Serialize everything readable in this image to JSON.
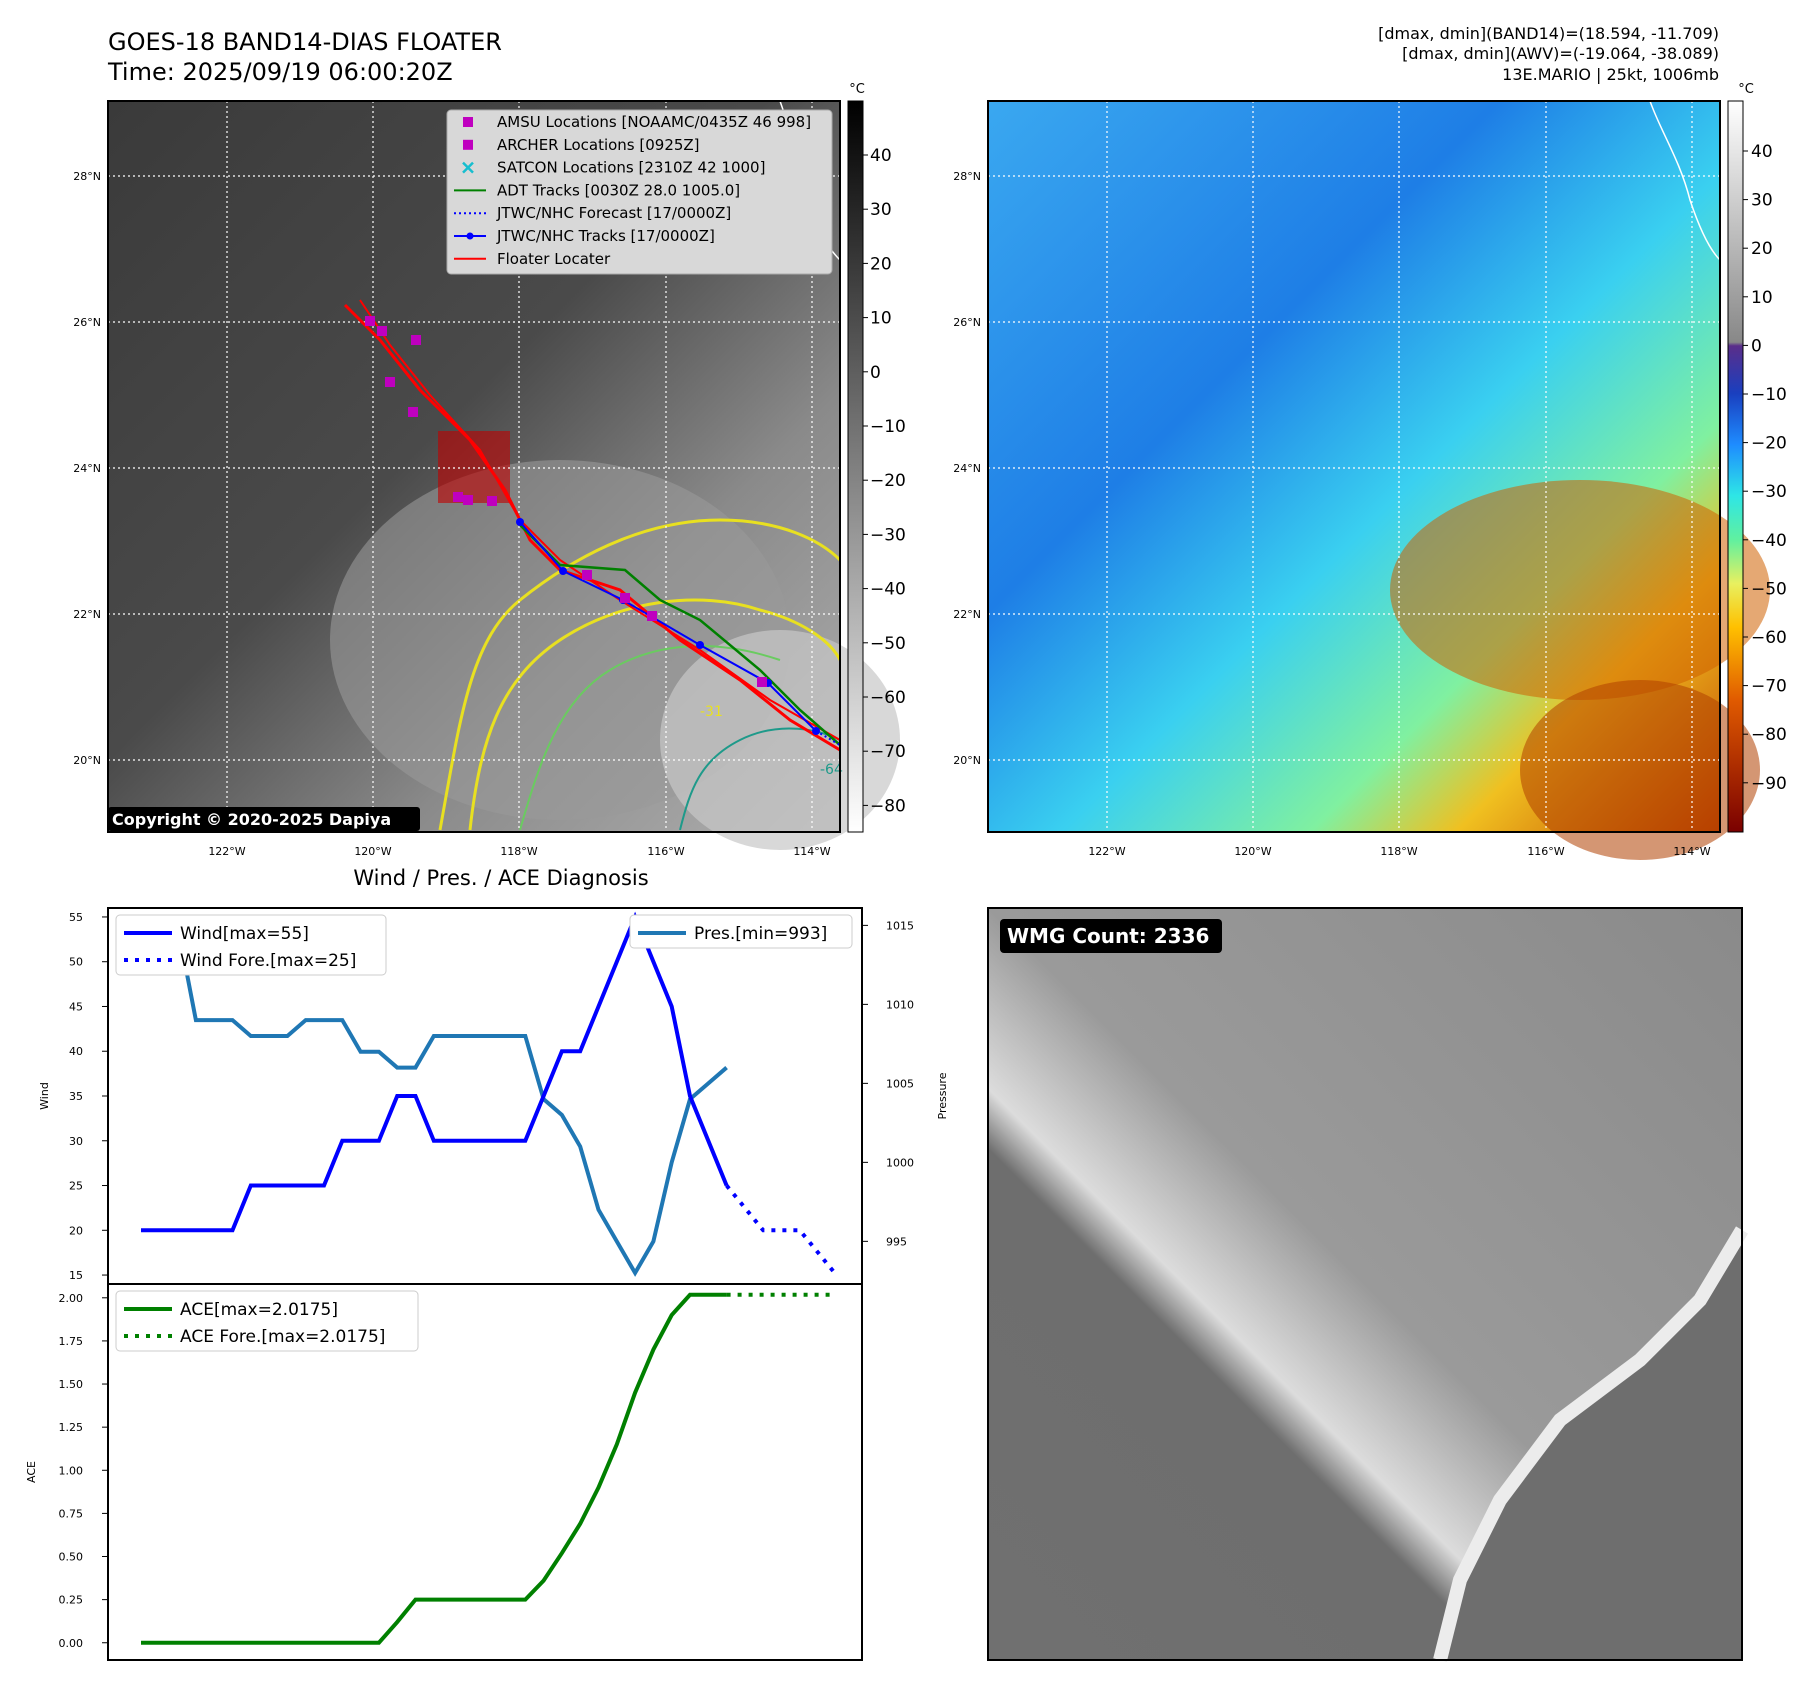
{
  "header": {
    "title_line1": "GOES-18 BAND14-DIAS FLOATER",
    "title_line2": "Time: 2025/09/19 06:00:20Z",
    "info_line1": "[dmax, dmin](BAND14)=(18.594, -11.709)",
    "info_line2": "[dmax, dmin](AWV)=(-19.064, -38.089)",
    "info_line3": "13E.MARIO | 25kt, 1006mb"
  },
  "map": {
    "lon_labels": [
      "122°W",
      "120°W",
      "118°W",
      "116°W",
      "114°W"
    ],
    "lat_labels": [
      "28°N",
      "26°N",
      "24°N",
      "22°N",
      "20°N"
    ],
    "copyright": "Copyright © 2020-2025 Dapiya",
    "contour_labels": [
      "-31",
      "-64"
    ],
    "legend": [
      {
        "label": "AMSU Locations [NOAAMC/0435Z 46 998]",
        "marker": "square",
        "color": "#bf00bf"
      },
      {
        "label": "ARCHER Locations [0925Z]",
        "marker": "square",
        "color": "#bf00bf"
      },
      {
        "label": "SATCON Locations [2310Z 42 1000]",
        "marker": "x",
        "color": "#17becf"
      },
      {
        "label": "ADT Tracks [0030Z 28.0 1005.0]",
        "marker": "line",
        "color": "#008000"
      },
      {
        "label": "JTWC/NHC Forecast [17/0000Z]",
        "marker": "dotted",
        "color": "#0000ff"
      },
      {
        "label": "JTWC/NHC Tracks [17/0000Z]",
        "marker": "line-dot",
        "color": "#0000ff"
      },
      {
        "label": "Floater Locater",
        "marker": "line",
        "color": "#ff0000"
      }
    ]
  },
  "colorbar_left": {
    "unit": "°C",
    "ticks": [
      "40",
      "30",
      "20",
      "10",
      "0",
      "−10",
      "−20",
      "−30",
      "−40",
      "−50",
      "−60",
      "−70",
      "−80"
    ]
  },
  "colorbar_right": {
    "unit": "°C",
    "ticks": [
      "40",
      "30",
      "20",
      "10",
      "0",
      "−10",
      "−20",
      "−30",
      "−40",
      "−50",
      "−60",
      "−70",
      "−80",
      "−90"
    ]
  },
  "diagnosis_title": "Wind / Pres. / ACE Diagnosis",
  "wmg_label": "WMG Count: 2336",
  "chart_data": [
    {
      "type": "line",
      "title": "Wind / Pres. / ACE Diagnosis",
      "ylabel": "Wind",
      "y2label": "Pressure",
      "ylim": [
        14,
        56
      ],
      "y2lim": [
        992.3,
        1016.1
      ],
      "yticks": [
        "55",
        "50",
        "45",
        "40",
        "35",
        "30",
        "25",
        "20",
        "15"
      ],
      "y2ticks": [
        "1015",
        "1010",
        "1005",
        "1000",
        "995"
      ],
      "series": [
        {
          "name": "Wind[max=55]",
          "color": "#0000ff",
          "style": "solid",
          "axis": "left",
          "values": [
            20,
            20,
            20,
            20,
            20,
            20,
            25,
            25,
            25,
            25,
            25,
            30,
            30,
            30,
            35,
            35,
            30,
            30,
            30,
            30,
            30,
            30,
            35,
            40,
            40,
            45,
            50,
            55,
            50,
            45,
            35,
            30,
            25
          ]
        },
        {
          "name": "Wind Fore.[max=25]",
          "color": "#0000ff",
          "style": "dotted",
          "axis": "left",
          "values": [
            25,
            22.5,
            20,
            20,
            20,
            17.5,
            15
          ]
        },
        {
          "name": "Pres.[min=993]",
          "color": "#1f77b4",
          "style": "solid",
          "axis": "right",
          "values": [
            1015,
            1015,
            1015,
            1009,
            1009,
            1009,
            1008,
            1008,
            1008,
            1009,
            1009,
            1009,
            1007,
            1007,
            1006,
            1006,
            1008,
            1008,
            1008,
            1008,
            1008,
            1008,
            1004,
            1003,
            1001,
            997,
            995,
            993,
            995,
            1000,
            1004,
            1005,
            1006
          ]
        }
      ],
      "legend_left": [
        "Wind[max=55]",
        "Wind Fore.[max=25]"
      ],
      "legend_right": [
        "Pres.[min=993]"
      ]
    },
    {
      "type": "line",
      "ylabel": "ACE",
      "ylim": [
        -0.1,
        2.08
      ],
      "yticks": [
        "2.00",
        "1.75",
        "1.50",
        "1.25",
        "1.00",
        "0.75",
        "0.50",
        "0.25",
        "0.00"
      ],
      "series": [
        {
          "name": "ACE[max=2.0175]",
          "color": "#008000",
          "style": "solid",
          "values": [
            0,
            0,
            0,
            0,
            0,
            0,
            0,
            0,
            0,
            0,
            0,
            0,
            0,
            0,
            0.12,
            0.25,
            0.25,
            0.25,
            0.25,
            0.25,
            0.25,
            0.25,
            0.36,
            0.52,
            0.69,
            0.9,
            1.15,
            1.45,
            1.7,
            1.9,
            2.0175,
            2.0175,
            2.0175
          ]
        },
        {
          "name": "ACE Fore.[max=2.0175]",
          "color": "#008000",
          "style": "dotted",
          "values": [
            2.0175,
            2.0175,
            2.0175,
            2.0175,
            2.0175,
            2.0175,
            2.0175
          ]
        }
      ]
    }
  ]
}
